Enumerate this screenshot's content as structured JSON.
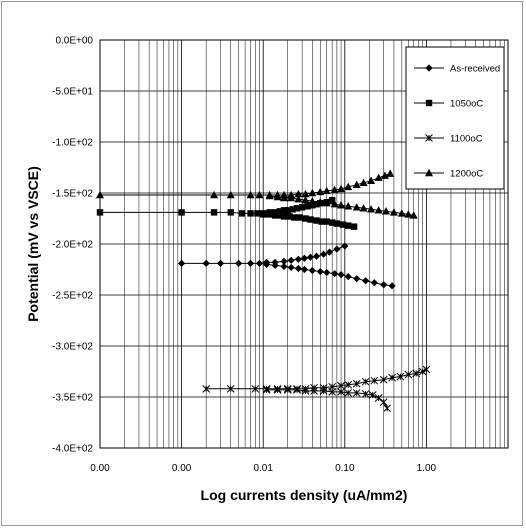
{
  "chart_data": {
    "type": "scatter",
    "title": "",
    "xlabel": "Log currents density (uA/mm2)",
    "ylabel": "Potential (mV vs VSCE)",
    "xscale": "log",
    "xlim": [
      0.0001,
      10
    ],
    "ylim": [
      -400,
      0
    ],
    "grid": true,
    "legend_position": "top-right",
    "x_tick_labels": [
      "0.00",
      "0.00",
      "0.01",
      "0.10",
      "1.00"
    ],
    "y_tick_labels": [
      "0.0E+00",
      "-5.0E+01",
      "-1.0E+02",
      "-1.5E+02",
      "-2.0E+02",
      "-2.5E+02",
      "-3.0E+02",
      "-3.5E+02",
      "-4.0E+02"
    ],
    "series": [
      {
        "name": "As-received",
        "marker": "diamond",
        "branches": [
          {
            "x": [
              0.001,
              0.002,
              0.003,
              0.005,
              0.007,
              0.009,
              0.011,
              0.014,
              0.018,
              0.022,
              0.027,
              0.032,
              0.038,
              0.045,
              0.055,
              0.065,
              0.08,
              0.1
            ],
            "y": [
              -219,
              -219,
              -219,
              -219,
              -219,
              -219,
              -218,
              -218,
              -217,
              -216,
              -215,
              -214,
              -213,
              -212,
              -210,
              -208,
              -205,
              -202
            ]
          },
          {
            "x": [
              0.011,
              0.014,
              0.018,
              0.022,
              0.027,
              0.032,
              0.04,
              0.05,
              0.06,
              0.075,
              0.09,
              0.11,
              0.14,
              0.18,
              0.23,
              0.3,
              0.38
            ],
            "y": [
              -220,
              -221,
              -222,
              -223,
              -224,
              -225,
              -226,
              -227,
              -228,
              -229,
              -230,
              -232,
              -234,
              -236,
              -238,
              -240,
              -241
            ]
          }
        ]
      },
      {
        "name": "1050oC",
        "marker": "square",
        "branches": [
          {
            "x": [
              0.0001,
              0.001,
              0.0025,
              0.004,
              0.0055,
              0.007,
              0.0085,
              0.01,
              0.012,
              0.014,
              0.016,
              0.018,
              0.02,
              0.023,
              0.026,
              0.03,
              0.035,
              0.04,
              0.045,
              0.05,
              0.06,
              0.07
            ],
            "y": [
              -169,
              -169,
              -169,
              -169,
              -170,
              -170,
              -170,
              -170,
              -169,
              -169,
              -168,
              -167,
              -167,
              -166,
              -165,
              -164,
              -163,
              -162,
              -161,
              -160,
              -159,
              -157
            ]
          },
          {
            "x": [
              0.01,
              0.012,
              0.014,
              0.016,
              0.018,
              0.021,
              0.024,
              0.028,
              0.033,
              0.038,
              0.045,
              0.052,
              0.06,
              0.07,
              0.08,
              0.095,
              0.11,
              0.13
            ],
            "y": [
              -171,
              -171,
              -172,
              -172,
              -173,
              -173,
              -174,
              -174,
              -175,
              -176,
              -177,
              -178,
              -178,
              -179,
              -180,
              -181,
              -182,
              -183
            ]
          }
        ]
      },
      {
        "name": "1100oC",
        "marker": "x",
        "branches": [
          {
            "x": [
              0.002,
              0.004,
              0.008,
              0.011,
              0.015,
              0.02,
              0.026,
              0.033,
              0.042,
              0.055,
              0.07,
              0.09,
              0.11,
              0.14,
              0.18,
              0.23,
              0.3,
              0.38,
              0.48,
              0.6,
              0.75,
              0.9,
              1.0
            ],
            "y": [
              -342,
              -342,
              -342,
              -342,
              -342,
              -342,
              -342,
              -342,
              -341,
              -341,
              -340,
              -339,
              -338,
              -337,
              -335,
              -334,
              -333,
              -331,
              -330,
              -328,
              -327,
              -325,
              -323
            ]
          },
          {
            "x": [
              0.011,
              0.015,
              0.02,
              0.026,
              0.033,
              0.042,
              0.055,
              0.07,
              0.09,
              0.11,
              0.14,
              0.18,
              0.22,
              0.26,
              0.3,
              0.33
            ],
            "y": [
              -343,
              -343,
              -343,
              -343,
              -344,
              -344,
              -344,
              -345,
              -345,
              -346,
              -346,
              -347,
              -348,
              -351,
              -355,
              -361
            ]
          }
        ]
      },
      {
        "name": "1200oC",
        "marker": "triangle",
        "branches": [
          {
            "x": [
              0.0001,
              0.0025,
              0.004,
              0.007,
              0.009,
              0.012,
              0.015,
              0.018,
              0.022,
              0.027,
              0.033,
              0.04,
              0.05,
              0.06,
              0.075,
              0.09,
              0.11,
              0.14,
              0.17,
              0.21,
              0.26,
              0.31,
              0.36
            ],
            "y": [
              -152,
              -152,
              -152,
              -152,
              -152,
              -152,
              -152,
              -152,
              -152,
              -151,
              -151,
              -150,
              -149,
              -148,
              -147,
              -146,
              -144,
              -142,
              -140,
              -138,
              -135,
              -133,
              -131
            ]
          },
          {
            "x": [
              0.012,
              0.015,
              0.018,
              0.022,
              0.027,
              0.033,
              0.04,
              0.05,
              0.06,
              0.075,
              0.09,
              0.11,
              0.14,
              0.17,
              0.21,
              0.26,
              0.32,
              0.4,
              0.5,
              0.6,
              0.7
            ],
            "y": [
              -153,
              -154,
              -155,
              -155,
              -156,
              -157,
              -158,
              -159,
              -160,
              -161,
              -162,
              -163,
              -164,
              -165,
              -166,
              -167,
              -168,
              -169,
              -170,
              -171,
              -172
            ]
          }
        ]
      }
    ]
  }
}
